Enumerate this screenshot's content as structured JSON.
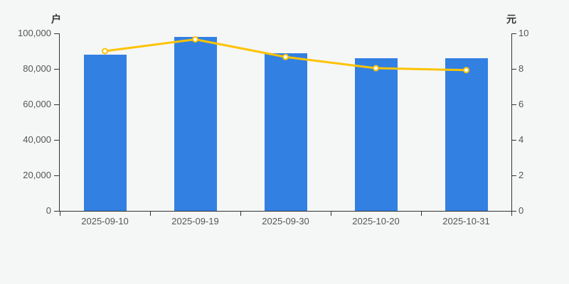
{
  "chart_data": {
    "type": "bar+line",
    "categories": [
      "2025-09-10",
      "2025-09-19",
      "2025-09-30",
      "2025-10-20",
      "2025-10-31"
    ],
    "series": [
      {
        "id": "holder-count-bars",
        "type": "bar",
        "y_axis": "left",
        "values": [
          88200,
          98200,
          88700,
          86000,
          86100
        ],
        "color": "#3380e3"
      },
      {
        "id": "price-line",
        "type": "line",
        "y_axis": "right",
        "values": [
          9.0,
          9.66,
          8.67,
          8.04,
          7.93
        ],
        "color": "#fdc301",
        "point_fill": "#ffffff"
      }
    ],
    "left_axis": {
      "name": "户",
      "min": 0,
      "max": 100000,
      "tick_labels": [
        "0",
        "20,000",
        "40,000",
        "60,000",
        "80,000",
        "100,000"
      ]
    },
    "right_axis": {
      "name": "元",
      "min": 0,
      "max": 10,
      "tick_labels": [
        "0",
        "2",
        "4",
        "6",
        "8",
        "10"
      ]
    },
    "grid_lines": false,
    "legend": false,
    "colors": {
      "background": "#f5f6f6",
      "axis": "#333333",
      "tick_text": "#555555"
    }
  }
}
